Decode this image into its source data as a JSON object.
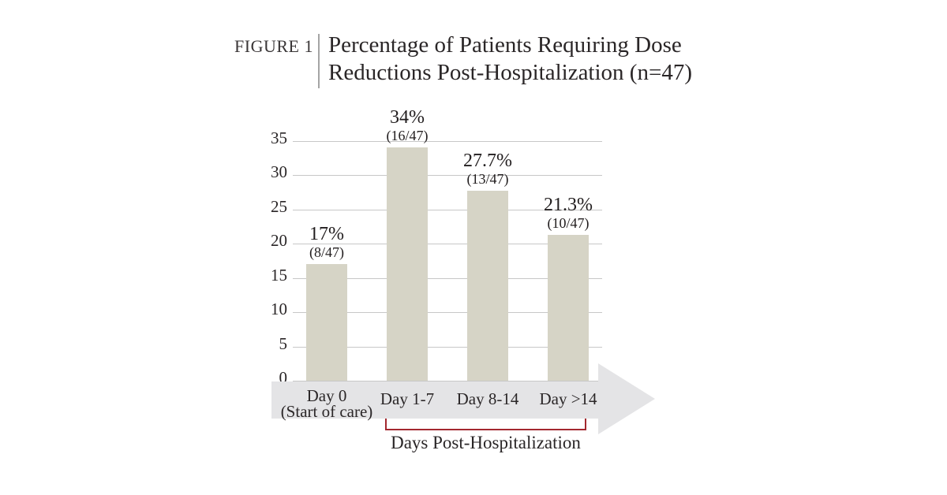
{
  "figure": {
    "tag": "FIGURE 1",
    "title_line1": "Percentage of Patients Requiring Dose",
    "title_line2": "Reductions Post-Hospitalization (n=47)"
  },
  "colors": {
    "bar": "#d6d4c6",
    "arrow": "#e4e4e6",
    "gridline": "#c7c7c7",
    "bracket": "#a3282f",
    "text": "#2a2627"
  },
  "chart_data": {
    "type": "bar",
    "figure_label": "FIGURE 1",
    "title": "Percentage of Patients Requiring Dose Reductions Post-Hospitalization (n=47)",
    "n_total": 47,
    "categories": [
      "Day 0 (Start of care)",
      "Day 1-7",
      "Day 8-14",
      "Day >14"
    ],
    "categories_display": [
      {
        "line1": "Day 0",
        "line2": "(Start of care)"
      },
      {
        "line1": "Day 1-7"
      },
      {
        "line1": "Day 8-14"
      },
      {
        "line1": "Day >14"
      }
    ],
    "values": [
      17,
      34,
      27.7,
      21.3
    ],
    "bar_labels": [
      {
        "percent": "17%",
        "fraction": "(8/47)"
      },
      {
        "percent": "34%",
        "fraction": "(16/47)"
      },
      {
        "percent": "27.7%",
        "fraction": "(13/47)"
      },
      {
        "percent": "21.3%",
        "fraction": "(10/47)"
      }
    ],
    "y_ticks": [
      0,
      5,
      10,
      15,
      20,
      25,
      30,
      35
    ],
    "ylim": [
      0,
      35
    ],
    "ylabel": "",
    "xlabel": "Days Post-Hospitalization",
    "grid": true,
    "legend": "none",
    "x_axis_style": "gray-arrow-right",
    "x_group_bracket": {
      "from": "Day 1-7",
      "to": "Day >14",
      "label": "Days Post-Hospitalization"
    }
  }
}
